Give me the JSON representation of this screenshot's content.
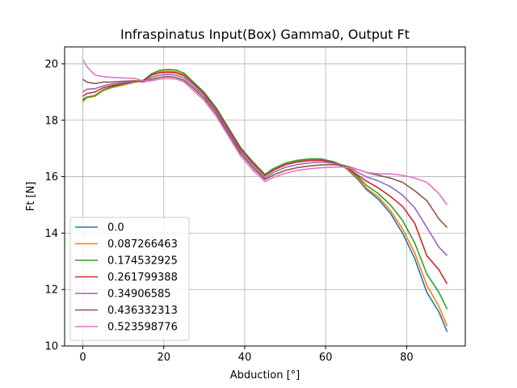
{
  "chart_data": {
    "type": "line",
    "title": "Infraspinatus Input(Box) Gamma0, Output Ft",
    "xlabel": "Abduction [°]",
    "ylabel": "Ft [N]",
    "xlim": [
      -4.5,
      94.5
    ],
    "ylim": [
      10,
      20.6
    ],
    "xticks": [
      0,
      20,
      40,
      60,
      80
    ],
    "yticks": [
      10,
      12,
      14,
      16,
      18,
      20
    ],
    "grid": true,
    "legend_position": "lower left",
    "x": [
      0,
      1,
      3,
      5,
      7,
      10,
      13,
      15,
      17,
      19,
      21,
      23,
      25,
      27,
      30,
      33,
      36,
      39,
      42,
      45,
      47,
      50,
      53,
      56,
      59,
      62,
      65,
      68,
      70,
      73,
      76,
      79,
      82,
      85,
      88,
      90
    ],
    "series": [
      {
        "name": "0.0",
        "color": "#1f77b4",
        "values": [
          18.7,
          18.8,
          18.85,
          19.05,
          19.15,
          19.25,
          19.35,
          19.4,
          19.6,
          19.7,
          19.72,
          19.7,
          19.6,
          19.35,
          18.95,
          18.4,
          17.7,
          17.0,
          16.5,
          16.05,
          16.25,
          16.45,
          16.55,
          16.6,
          16.6,
          16.5,
          16.3,
          15.9,
          15.55,
          15.2,
          14.7,
          14.0,
          13.1,
          11.9,
          11.2,
          10.5
        ]
      },
      {
        "name": "0.087266463",
        "color": "#ff7f0e",
        "values": [
          18.65,
          18.8,
          18.85,
          19.05,
          19.15,
          19.25,
          19.35,
          19.4,
          19.62,
          19.72,
          19.74,
          19.72,
          19.62,
          19.37,
          18.97,
          18.42,
          17.72,
          17.02,
          16.52,
          16.07,
          16.27,
          16.47,
          16.57,
          16.62,
          16.62,
          16.52,
          16.32,
          15.95,
          15.6,
          15.28,
          14.8,
          14.15,
          13.3,
          12.15,
          11.4,
          10.7
        ]
      },
      {
        "name": "0.174532925",
        "color": "#2ca02c",
        "values": [
          18.75,
          18.82,
          18.88,
          19.08,
          19.18,
          19.28,
          19.38,
          19.42,
          19.65,
          19.77,
          19.8,
          19.78,
          19.67,
          19.4,
          18.99,
          18.43,
          17.73,
          17.03,
          16.53,
          16.08,
          16.28,
          16.48,
          16.58,
          16.63,
          16.63,
          16.53,
          16.35,
          16.0,
          15.7,
          15.4,
          15.0,
          14.45,
          13.65,
          12.55,
          11.9,
          11.3
        ]
      },
      {
        "name": "0.261799388",
        "color": "#d62728",
        "values": [
          18.85,
          18.95,
          19.0,
          19.15,
          19.22,
          19.3,
          19.38,
          19.4,
          19.6,
          19.68,
          19.7,
          19.68,
          19.58,
          19.34,
          18.93,
          18.38,
          17.68,
          16.98,
          16.48,
          16.03,
          16.22,
          16.42,
          16.52,
          16.57,
          16.58,
          16.5,
          16.36,
          16.05,
          15.85,
          15.6,
          15.3,
          14.95,
          14.35,
          13.2,
          12.7,
          12.2
        ]
      },
      {
        "name": "0.34906585",
        "color": "#9467bd",
        "values": [
          19.0,
          19.1,
          19.12,
          19.22,
          19.28,
          19.33,
          19.38,
          19.38,
          19.52,
          19.6,
          19.62,
          19.6,
          19.5,
          19.26,
          18.86,
          18.3,
          17.6,
          16.9,
          16.4,
          15.95,
          16.14,
          16.33,
          16.43,
          16.49,
          16.52,
          16.48,
          16.38,
          16.15,
          16.0,
          15.85,
          15.65,
          15.35,
          14.9,
          14.2,
          13.5,
          13.2
        ]
      },
      {
        "name": "0.436332313",
        "color": "#8c564b",
        "values": [
          19.45,
          19.35,
          19.3,
          19.35,
          19.35,
          19.38,
          19.4,
          19.35,
          19.45,
          19.52,
          19.55,
          19.52,
          19.42,
          19.18,
          18.78,
          18.22,
          17.52,
          16.82,
          16.32,
          15.9,
          16.05,
          16.22,
          16.32,
          16.38,
          16.42,
          16.43,
          16.38,
          16.25,
          16.15,
          16.05,
          15.95,
          15.8,
          15.5,
          15.15,
          14.5,
          14.2
        ]
      },
      {
        "name": "0.523598776",
        "color": "#e377c2",
        "values": [
          20.15,
          19.9,
          19.6,
          19.55,
          19.52,
          19.5,
          19.48,
          19.38,
          19.4,
          19.46,
          19.48,
          19.46,
          19.36,
          19.1,
          18.7,
          18.13,
          17.43,
          16.73,
          16.23,
          15.82,
          15.97,
          16.12,
          16.22,
          16.28,
          16.32,
          16.34,
          16.34,
          16.25,
          16.15,
          16.1,
          16.1,
          16.05,
          15.95,
          15.8,
          15.4,
          15.0
        ]
      }
    ]
  }
}
